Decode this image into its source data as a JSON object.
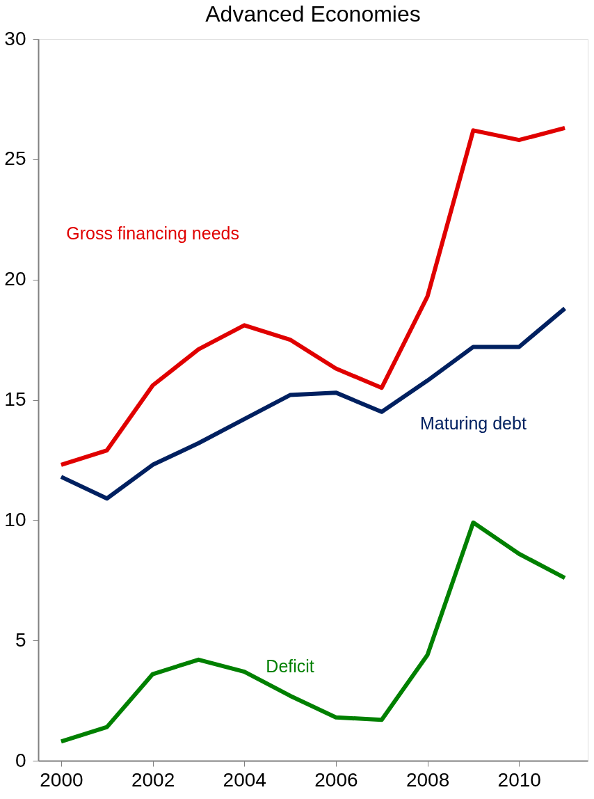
{
  "chart_data": {
    "type": "line",
    "title": "Advanced Economies",
    "x": [
      2000,
      2001,
      2002,
      2003,
      2004,
      2005,
      2006,
      2007,
      2008,
      2009,
      2010,
      2011
    ],
    "series": [
      {
        "name": "Gross financing needs",
        "color": "#e00000",
        "values": [
          12.3,
          12.9,
          15.6,
          17.1,
          18.1,
          17.5,
          16.3,
          15.5,
          19.3,
          26.2,
          25.8,
          26.3
        ]
      },
      {
        "name": "Maturing debt",
        "color": "#002060",
        "values": [
          11.8,
          10.9,
          12.3,
          13.2,
          14.2,
          15.2,
          15.3,
          14.5,
          15.8,
          17.2,
          17.2,
          18.8
        ]
      },
      {
        "name": "Deficit",
        "color": "#008000",
        "values": [
          0.8,
          1.4,
          3.6,
          4.2,
          3.7,
          2.7,
          1.8,
          1.7,
          4.4,
          9.9,
          8.6,
          7.6
        ]
      }
    ],
    "xlim": [
      1999.5,
      2011.5
    ],
    "xticks": [
      2000,
      2002,
      2004,
      2006,
      2008,
      2010
    ],
    "ylim": [
      0,
      30
    ],
    "yticks": [
      0,
      5,
      10,
      15,
      20,
      25,
      30
    ],
    "grid": false,
    "marker": "none",
    "line_style": "solid"
  }
}
